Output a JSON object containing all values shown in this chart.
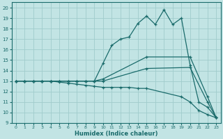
{
  "xlabel": "Humidex (Indice chaleur)",
  "bg_color": "#c2e4e4",
  "grid_color": "#a0cccc",
  "line_color": "#1a6b6b",
  "xlim": [
    -0.5,
    23.5
  ],
  "ylim": [
    9,
    20.5
  ],
  "xticks": [
    0,
    1,
    2,
    3,
    4,
    5,
    6,
    7,
    8,
    9,
    10,
    11,
    12,
    13,
    14,
    15,
    16,
    17,
    18,
    19,
    20,
    21,
    22,
    23
  ],
  "yticks": [
    9,
    10,
    11,
    12,
    13,
    14,
    15,
    16,
    17,
    18,
    19,
    20
  ],
  "line1_x": [
    0,
    1,
    2,
    3,
    4,
    5,
    6,
    7,
    8,
    9,
    10,
    11,
    12,
    13,
    14,
    15,
    16,
    17,
    18,
    19,
    20,
    21,
    22,
    23
  ],
  "line1_y": [
    13,
    13,
    13,
    13,
    13,
    13,
    13,
    13,
    13,
    13,
    14.7,
    16.4,
    17.0,
    17.2,
    18.5,
    19.2,
    18.4,
    19.8,
    18.4,
    19.0,
    14.5,
    11.0,
    10.5,
    9.5
  ],
  "line2_x": [
    0,
    1,
    2,
    3,
    4,
    5,
    6,
    7,
    8,
    9,
    10,
    15,
    20,
    22,
    23
  ],
  "line2_y": [
    13,
    13,
    13,
    13,
    13,
    13,
    13,
    13,
    13,
    13,
    13.2,
    15.3,
    15.3,
    11.5,
    9.5
  ],
  "line3_x": [
    0,
    1,
    2,
    3,
    4,
    5,
    6,
    7,
    8,
    9,
    10,
    15,
    20,
    22,
    23
  ],
  "line3_y": [
    13,
    13,
    13,
    13,
    13,
    13,
    13,
    13,
    13,
    13,
    13.0,
    14.2,
    14.3,
    11.0,
    9.5
  ],
  "line4_x": [
    0,
    1,
    2,
    3,
    4,
    5,
    6,
    7,
    8,
    9,
    10,
    11,
    12,
    13,
    14,
    15,
    19,
    20,
    21,
    22,
    23
  ],
  "line4_y": [
    13,
    13,
    13,
    13,
    13,
    12.9,
    12.8,
    12.7,
    12.6,
    12.5,
    12.4,
    12.4,
    12.4,
    12.4,
    12.3,
    12.3,
    11.5,
    11.0,
    10.2,
    9.8,
    9.5
  ]
}
